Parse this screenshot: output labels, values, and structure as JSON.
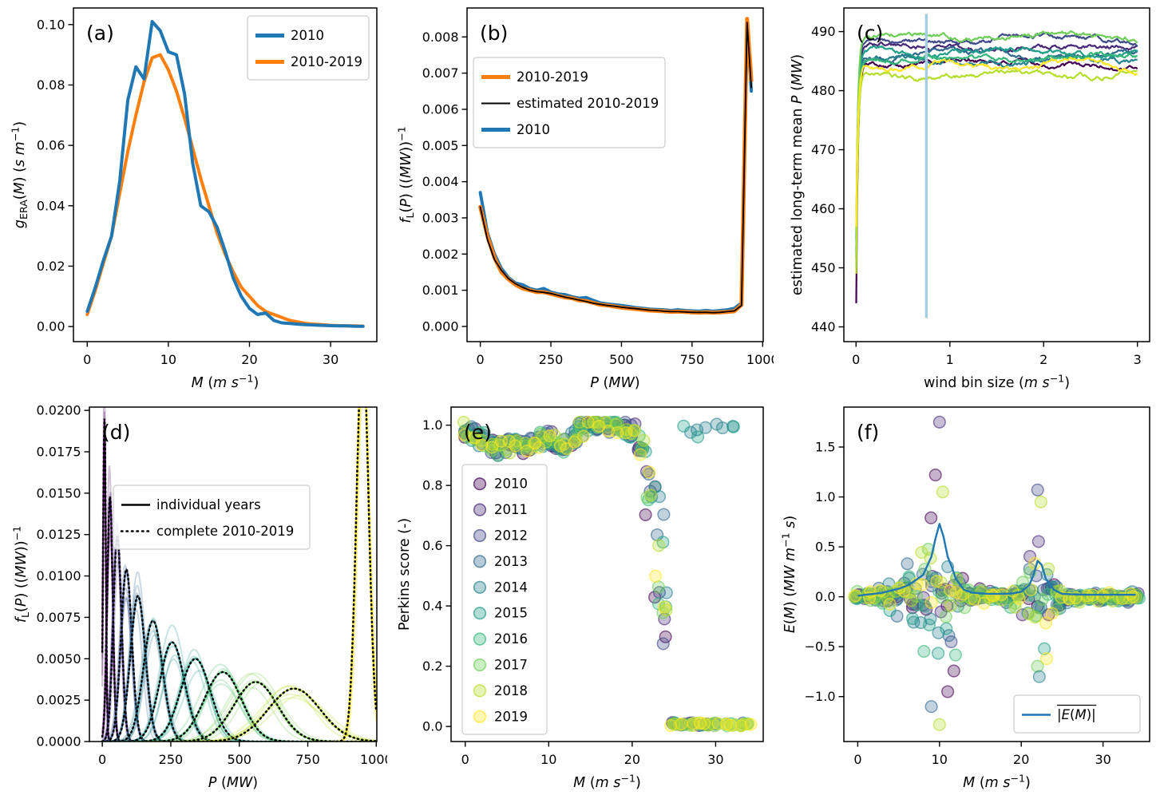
{
  "colors": {
    "blue": "#1f77b4",
    "orange": "#ff7f0e",
    "black": "#000000",
    "vline_blue": "#a6cee3",
    "viridis10": [
      "#440154",
      "#482878",
      "#3e4989",
      "#31688e",
      "#26828e",
      "#1f9e89",
      "#35b779",
      "#6ece58",
      "#b5de2b",
      "#fde725"
    ],
    "viridis12": [
      "#440154",
      "#470d60",
      "#46327e",
      "#3b528b",
      "#31688e",
      "#287c8e",
      "#21918c",
      "#1fa187",
      "#44bf70",
      "#7ad151",
      "#bddf26",
      "#fde725"
    ]
  },
  "chart_data": [
    {
      "id": "a",
      "letter": "(a)",
      "type": "line",
      "render": "series",
      "xlabel": "*M* (*m s*^{−1})",
      "ylabel": "*g*_{ERA}(*M*) (*s m*^{−1})",
      "xlim": [
        -1.7,
        35.7
      ],
      "ylim": [
        -0.005,
        0.1055
      ],
      "xticks": [
        0,
        10,
        20,
        30
      ],
      "yticks": [
        0,
        0.02,
        0.04,
        0.06,
        0.08,
        0.1
      ],
      "ytick_decimals": 2,
      "legend": {
        "loc": "upper right",
        "items": [
          {
            "label": "2010",
            "color": "blue",
            "lw": 5
          },
          {
            "label": "2010-2019",
            "color": "orange",
            "lw": 5
          }
        ]
      },
      "x": [
        0,
        1,
        2,
        3,
        4,
        5,
        6,
        7,
        8,
        9,
        10,
        11,
        12,
        13,
        14,
        15,
        16,
        17,
        18,
        19,
        20,
        21,
        22,
        23,
        24,
        25,
        26,
        27,
        28,
        29,
        30,
        31,
        32,
        33,
        34
      ],
      "series": [
        {
          "name": "2010-2019",
          "color": "orange",
          "lw": 4,
          "y": [
            0.004,
            0.012,
            0.021,
            0.03,
            0.044,
            0.058,
            0.07,
            0.081,
            0.089,
            0.09,
            0.085,
            0.078,
            0.069,
            0.059,
            0.049,
            0.04,
            0.031,
            0.024,
            0.018,
            0.013,
            0.01,
            0.007,
            0.005,
            0.004,
            0.003,
            0.002,
            0.0015,
            0.001,
            0.0008,
            0.0006,
            0.0004,
            0.0003,
            0.0002,
            0.0002,
            0.0001
          ]
        },
        {
          "name": "2010",
          "color": "blue",
          "lw": 4,
          "y": [
            0.005,
            0.013,
            0.022,
            0.03,
            0.048,
            0.075,
            0.086,
            0.082,
            0.101,
            0.098,
            0.091,
            0.09,
            0.077,
            0.054,
            0.04,
            0.038,
            0.033,
            0.025,
            0.016,
            0.01,
            0.006,
            0.004,
            0.0045,
            0.002,
            0.0012,
            0.001,
            0.0008,
            0.0006,
            0.0005,
            0.0004,
            0.0003,
            0.0002,
            0.0002,
            0.0001,
            0.0001
          ]
        }
      ]
    },
    {
      "id": "b",
      "letter": "(b)",
      "type": "line",
      "render": "series",
      "xlabel": "*P* (*MW*)",
      "ylabel": "*f*_{L}(*P*) ((*MW*))^{−1}",
      "xlim": [
        -47,
        1002
      ],
      "ylim": [
        -0.00042,
        0.0088
      ],
      "xticks": [
        0,
        250,
        500,
        750,
        1000
      ],
      "yticks": [
        0,
        0.001,
        0.002,
        0.003,
        0.004,
        0.005,
        0.006,
        0.007,
        0.008
      ],
      "ytick_decimals": 3,
      "legend": {
        "loc": "upper left",
        "items": [
          {
            "label": "2010-2019",
            "color": "orange",
            "lw": 5
          },
          {
            "label": "estimated 2010-2019",
            "color": "black",
            "lw": 2
          },
          {
            "label": "2010",
            "color": "blue",
            "lw": 5
          }
        ]
      },
      "x": [
        0,
        25,
        50,
        75,
        100,
        125,
        150,
        175,
        200,
        225,
        250,
        275,
        300,
        325,
        350,
        375,
        400,
        425,
        450,
        475,
        500,
        525,
        550,
        575,
        600,
        625,
        650,
        675,
        700,
        725,
        750,
        775,
        800,
        825,
        850,
        875,
        900,
        925,
        945,
        960
      ],
      "series": [
        {
          "name": "2010",
          "color": "blue",
          "lw": 4,
          "y": [
            0.0037,
            0.0026,
            0.002,
            0.0016,
            0.00135,
            0.0012,
            0.00115,
            0.00105,
            0.001,
            0.00105,
            0.00095,
            0.0009,
            0.00088,
            0.00082,
            0.00078,
            0.0008,
            0.00072,
            0.00065,
            0.00062,
            0.0006,
            0.00058,
            0.00055,
            0.00052,
            0.0005,
            0.00048,
            0.00047,
            0.00046,
            0.00044,
            0.00046,
            0.00044,
            0.00043,
            0.00042,
            0.00044,
            0.00042,
            0.00044,
            0.00046,
            0.0005,
            0.00065,
            0.0083,
            0.0065
          ]
        },
        {
          "name": "2010-2019",
          "color": "orange",
          "lw": 5,
          "y": [
            0.0033,
            0.0025,
            0.0019,
            0.0015,
            0.0013,
            0.00115,
            0.00105,
            0.001,
            0.00095,
            0.00095,
            0.0009,
            0.00085,
            0.0008,
            0.00078,
            0.00072,
            0.0007,
            0.00065,
            0.0006,
            0.00058,
            0.00055,
            0.00052,
            0.0005,
            0.00048,
            0.00046,
            0.00044,
            0.00043,
            0.00042,
            0.0004,
            0.00041,
            0.0004,
            0.00039,
            0.00038,
            0.00039,
            0.00038,
            0.00039,
            0.0004,
            0.00042,
            0.0006,
            0.0085,
            0.0068
          ]
        },
        {
          "name": "estimated 2010-2019",
          "color": "black",
          "lw": 1.8,
          "y": [
            0.0033,
            0.0024,
            0.00185,
            0.00155,
            0.00132,
            0.00118,
            0.00108,
            0.001,
            0.00096,
            0.00094,
            0.00091,
            0.00086,
            0.00081,
            0.00077,
            0.00073,
            0.00069,
            0.00064,
            0.00061,
            0.00058,
            0.00056,
            0.00053,
            0.00051,
            0.00049,
            0.00047,
            0.00045,
            0.00044,
            0.00042,
            0.00041,
            0.00041,
            0.0004,
            0.00039,
            0.00039,
            0.00039,
            0.00038,
            0.00039,
            0.00041,
            0.00043,
            0.00058,
            0.0084,
            0.0066
          ]
        }
      ]
    },
    {
      "id": "c",
      "letter": "(c)",
      "type": "line",
      "render": "ensemble",
      "xlabel": "wind bin size (*m s*^{−1})",
      "ylabel": "estimated long-term mean *P* (*MW*)",
      "xlim": [
        -0.13,
        3.13
      ],
      "ylim": [
        437.5,
        494
      ],
      "xticks": [
        0,
        1,
        2,
        3
      ],
      "yticks": [
        440,
        450,
        460,
        470,
        480,
        490
      ],
      "ytick_decimals": 0,
      "years": [
        "2010",
        "2011",
        "2012",
        "2013",
        "2014",
        "2015",
        "2016",
        "2017",
        "2018",
        "2019"
      ],
      "start_values": [
        444,
        452.5,
        455,
        450,
        451.5,
        453,
        452,
        456,
        449,
        457
      ],
      "plateau_values": [
        484.5,
        487.5,
        488.5,
        486,
        485,
        486.5,
        485.5,
        489.3,
        482.7,
        484.2
      ],
      "wiggle_mw": 1.0,
      "x_range": [
        0.002,
        3
      ],
      "vline": {
        "x": 0.75,
        "y_from": 441.5,
        "y_to": 493,
        "color": "vline_blue",
        "lw": 3.5
      }
    },
    {
      "id": "d",
      "letter": "(d)",
      "type": "line",
      "render": "mixture",
      "xlabel": "*P* (*MW*)",
      "ylabel": "*f*_{L}(*P*) ((*MW*))^{−1}",
      "xlim": [
        -47,
        1002
      ],
      "ylim": [
        0,
        0.0202
      ],
      "xticks": [
        0,
        250,
        500,
        750,
        1000
      ],
      "yticks": [
        0,
        0.0025,
        0.005,
        0.0075,
        0.01,
        0.0125,
        0.015,
        0.0175,
        0.02
      ],
      "ytick_decimals": 4,
      "legend": {
        "loc": "upper left",
        "items": [
          {
            "label": "individual years",
            "color": "black",
            "lw": 2.5
          },
          {
            "label": "complete 2010-2019",
            "color": "black",
            "lw": 2.5,
            "dash": "1.5 5"
          }
        ]
      },
      "components": {
        "centers": [
          8,
          28,
          55,
          88,
          130,
          185,
          255,
          340,
          440,
          560,
          700,
          950
        ],
        "sigmas": [
          5,
          10,
          15,
          20,
          27,
          35,
          45,
          55,
          68,
          80,
          95,
          22
        ],
        "peak_heights": [
          0.0195,
          0.0148,
          0.0124,
          0.0104,
          0.0088,
          0.0073,
          0.006,
          0.005,
          0.0042,
          0.0036,
          0.0032,
          0.024
        ]
      },
      "n_individual_years": 5
    },
    {
      "id": "e",
      "letter": "(e)",
      "type": "scatter",
      "render": "perkins",
      "xlabel": "*M* (*m s*^{−1})",
      "ylabel": "Perkins score (-)",
      "xlim": [
        -1.7,
        35.7
      ],
      "ylim": [
        -0.05,
        1.06
      ],
      "xticks": [
        0,
        10,
        20,
        30
      ],
      "yticks": [
        0,
        0.2,
        0.4,
        0.6,
        0.8,
        1
      ],
      "ytick_decimals": 1,
      "years": [
        "2010",
        "2011",
        "2012",
        "2013",
        "2014",
        "2015",
        "2016",
        "2017",
        "2018",
        "2019"
      ],
      "score_profile_m0_20": [
        0.985,
        0.97,
        0.95,
        0.935,
        0.925,
        0.93,
        0.94,
        0.93,
        0.94,
        0.95,
        0.955,
        0.945,
        0.935,
        0.96,
        0.99,
        1,
        1,
        1,
        1,
        0.995,
        0.985
      ],
      "dropoff_range": [
        20,
        25
      ],
      "zero_score_range": [
        25,
        34
      ]
    },
    {
      "id": "f",
      "letter": "(f)",
      "type": "scatter",
      "render": "error",
      "xlabel": "*M* (*m s*^{−1})",
      "ylabel": "*E*(*M*) (*MW m*^{−1} *s*)",
      "xlim": [
        -1.7,
        35.7
      ],
      "ylim": [
        -1.45,
        1.9
      ],
      "xticks": [
        0,
        10,
        20,
        30
      ],
      "yticks": [
        -1,
        -0.5,
        0,
        0.5,
        1,
        1.5
      ],
      "ytick_decimals": 1,
      "spread_profile": [
        [
          0,
          0.03
        ],
        [
          2,
          0.06
        ],
        [
          3,
          0.1
        ],
        [
          4,
          0.2
        ],
        [
          5,
          0.3
        ],
        [
          6,
          0.35
        ],
        [
          7,
          0.45
        ],
        [
          8,
          0.55
        ],
        [
          9,
          0.65
        ],
        [
          10,
          0.7
        ],
        [
          11,
          0.55
        ],
        [
          12,
          0.4
        ],
        [
          13,
          0.15
        ],
        [
          14,
          0.06
        ],
        [
          16,
          0.05
        ],
        [
          18,
          0.05
        ],
        [
          20,
          0.12
        ],
        [
          21,
          0.35
        ],
        [
          22,
          0.5
        ],
        [
          23,
          0.4
        ],
        [
          24,
          0.2
        ],
        [
          25,
          0.08
        ],
        [
          26,
          0.04
        ],
        [
          34,
          0.04
        ]
      ],
      "outliers": [
        [
          10,
          1.75,
          1
        ],
        [
          9.5,
          1.22,
          0
        ],
        [
          10.4,
          1.05,
          8
        ],
        [
          22,
          1.07,
          2
        ],
        [
          22.4,
          0.95,
          8
        ],
        [
          10,
          -1.28,
          8
        ],
        [
          9,
          -1.1,
          3
        ],
        [
          11,
          -0.95,
          0
        ],
        [
          22.2,
          -0.8,
          4
        ],
        [
          23.1,
          -0.62,
          9
        ]
      ],
      "mean_abs_line": {
        "label": "|*E*(*M*)|",
        "color": "blue",
        "lw": 2.4,
        "points": [
          [
            0,
            0.01
          ],
          [
            1,
            0.02
          ],
          [
            2,
            0.03
          ],
          [
            3,
            0.04
          ],
          [
            4,
            0.06
          ],
          [
            5,
            0.08
          ],
          [
            6,
            0.11
          ],
          [
            7,
            0.16
          ],
          [
            8,
            0.22
          ],
          [
            9,
            0.4
          ],
          [
            9.5,
            0.58
          ],
          [
            10,
            0.73
          ],
          [
            10.5,
            0.6
          ],
          [
            11,
            0.4
          ],
          [
            11.5,
            0.3
          ],
          [
            12,
            0.18
          ],
          [
            13,
            0.07
          ],
          [
            14,
            0.04
          ],
          [
            15,
            0.035
          ],
          [
            16,
            0.03
          ],
          [
            17,
            0.03
          ],
          [
            18,
            0.03
          ],
          [
            19,
            0.035
          ],
          [
            20,
            0.05
          ],
          [
            21,
            0.12
          ],
          [
            21.5,
            0.22
          ],
          [
            22,
            0.36
          ],
          [
            22.5,
            0.32
          ],
          [
            23,
            0.18
          ],
          [
            24,
            0.07
          ],
          [
            25,
            0.03
          ],
          [
            26,
            0.025
          ],
          [
            28,
            0.02
          ],
          [
            30,
            0.02
          ],
          [
            32,
            0.02
          ],
          [
            34,
            0.02
          ]
        ]
      }
    }
  ]
}
